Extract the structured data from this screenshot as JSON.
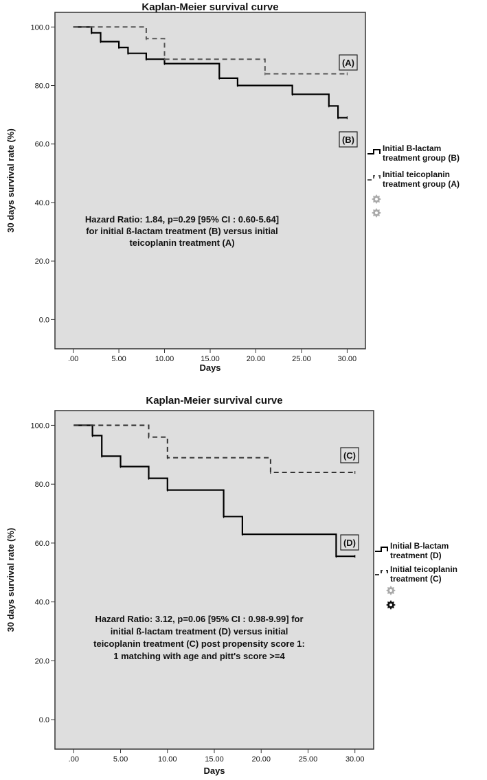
{
  "chart_data": [
    {
      "type": "line",
      "title": "Kaplan-Meier survival curve",
      "xlabel": "Days",
      "ylabel": "30 days survival rate (%)",
      "xlim": [
        0,
        30
      ],
      "ylim": [
        0,
        100
      ],
      "xticks": [
        ".00",
        "5.00",
        "10.00",
        "15.00",
        "20.00",
        "25.00",
        "30.00"
      ],
      "yticks": [
        "0.0",
        "20.0",
        "40.0",
        "60.0",
        "80.0",
        "100.0"
      ],
      "grid": false,
      "legend_position": "right",
      "annotation_lines": [
        "Hazard Ratio: 1.84, p=0.29 [95% CI : 0.60-5.64]",
        "for initial ß-lactam treatment (B) versus initial",
        "teicoplanin treatment (A)"
      ],
      "series": [
        {
          "name": "Initial B-lactam treatment group (B)",
          "legend_lines": [
            "Initial B-lactam",
            "treatment group (B)"
          ],
          "tag": "(B)",
          "style": "solid",
          "color": "#000000",
          "x": [
            0,
            2,
            3,
            5,
            6,
            8,
            10,
            16,
            18,
            24,
            28,
            29,
            30
          ],
          "y": [
            100,
            98,
            95,
            93,
            91,
            89,
            87.5,
            82.5,
            80,
            77,
            73,
            69,
            69
          ]
        },
        {
          "name": "Initial teicoplanin treatment group (A)",
          "legend_lines": [
            "Initial teicoplanin",
            "treatment group (A)"
          ],
          "tag": "(A)",
          "style": "dashed",
          "color": "#555555",
          "x": [
            0,
            8,
            10,
            21,
            30
          ],
          "y": [
            100,
            96,
            89,
            84,
            84
          ]
        }
      ]
    },
    {
      "type": "line",
      "title": "Kaplan-Meier survival curve",
      "xlabel": "Days",
      "ylabel": "30 days survival rate (%)",
      "xlim": [
        0,
        30
      ],
      "ylim": [
        0,
        100
      ],
      "xticks": [
        ".00",
        "5.00",
        "10.00",
        "15.00",
        "20.00",
        "25.00",
        "30.00"
      ],
      "yticks": [
        "0.0",
        "20.0",
        "40.0",
        "60.0",
        "80.0",
        "100.0"
      ],
      "grid": false,
      "legend_position": "right",
      "annotation_lines": [
        "Hazard Ratio: 3.12, p=0.06 [95% CI : 0.98-9.99]  for",
        "initial ß-lactam treatment (D) versus initial",
        "teicoplanin treatment (C) post propensity score 1:",
        "1 matching with age and pitt's score >=4"
      ],
      "series": [
        {
          "name": "Initial B-lactam treatment (D)",
          "legend_lines": [
            "Initial B-lactam",
            "treatment (D)"
          ],
          "tag": "(D)",
          "style": "solid",
          "color": "#000000",
          "x": [
            0,
            2,
            3,
            5,
            8,
            10,
            16,
            18,
            28,
            30
          ],
          "y": [
            100,
            96.5,
            89.5,
            86,
            82,
            78,
            69,
            63,
            55.5,
            55.5
          ]
        },
        {
          "name": "Initial teicoplanin treatment (C)",
          "legend_lines": [
            "Initial teicoplanin",
            "treatment (C)"
          ],
          "tag": "(C)",
          "style": "dashed",
          "color": "#333333",
          "x": [
            0,
            8,
            10,
            21,
            30
          ],
          "y": [
            100,
            96,
            89,
            84,
            84
          ]
        }
      ]
    }
  ]
}
